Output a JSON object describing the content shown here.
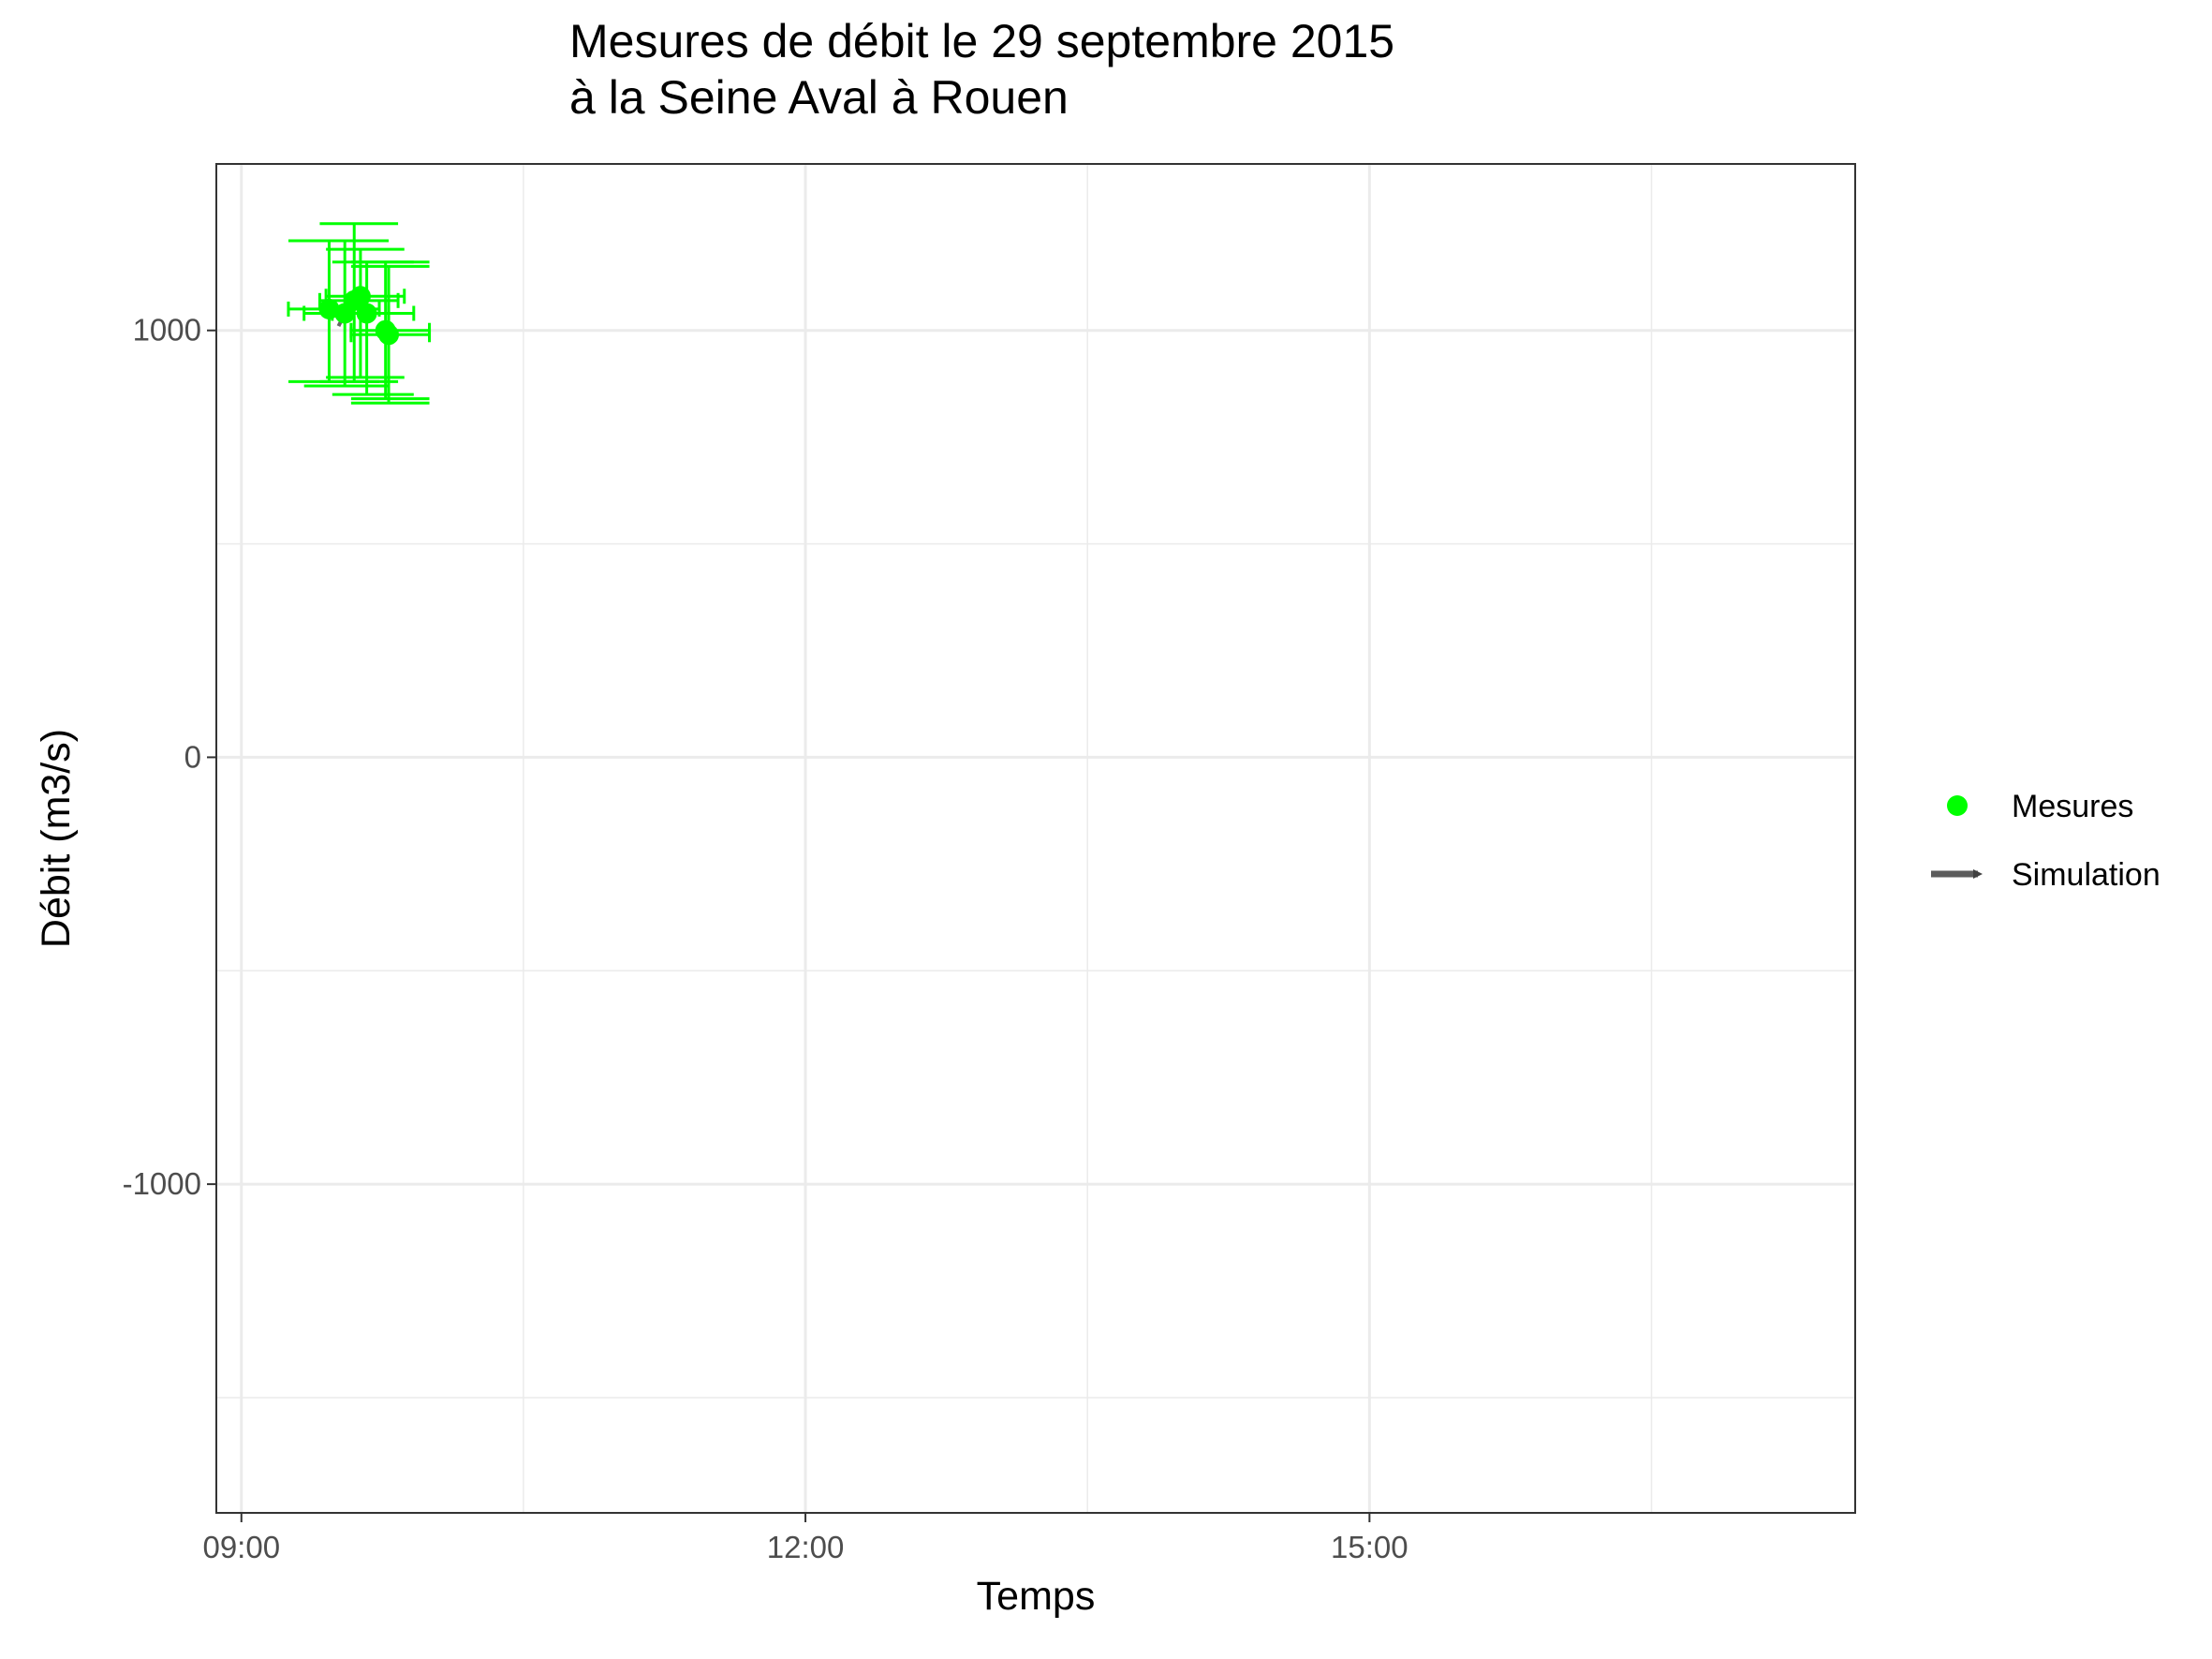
{
  "chart_data": {
    "type": "scatter",
    "title": "Mesures de débit le 29 septembre 2015",
    "subtitle": "à la Seine Aval à Rouen",
    "xlabel": "Temps",
    "ylabel": "Débit (m3/s)",
    "x_ticks": [
      "09:00",
      "12:00",
      "15:00"
    ],
    "y_ticks": [
      -1000,
      0,
      1000
    ],
    "xlim": [
      "08:52",
      "17:35"
    ],
    "ylim": [
      -1770,
      1390
    ],
    "grid": true,
    "legend_position": "right",
    "legend": [
      {
        "label": "Mesures",
        "symbol": "point",
        "color": "#00ff00"
      },
      {
        "label": "Simulation",
        "symbol": "arrow",
        "color": "#404040"
      }
    ],
    "series": [
      {
        "name": "Mesures",
        "color": "#00ff00",
        "points": [
          {
            "x": "09:28",
            "y": 1050,
            "x_err": [
              "09:15",
              "09:44"
            ],
            "y_err": [
              880,
              1210
            ]
          },
          {
            "x": "09:33",
            "y": 1040,
            "x_err": [
              "09:20",
              "09:47"
            ],
            "y_err": [
              870,
              1210
            ]
          },
          {
            "x": "09:36",
            "y": 1070,
            "x_err": [
              "09:25",
              "09:50"
            ],
            "y_err": [
              880,
              1250
            ]
          },
          {
            "x": "09:38",
            "y": 1080,
            "x_err": [
              "09:27",
              "09:52"
            ],
            "y_err": [
              890,
              1190
            ]
          },
          {
            "x": "09:40",
            "y": 1040,
            "x_err": [
              "09:29",
              "09:55"
            ],
            "y_err": [
              850,
              1160
            ]
          },
          {
            "x": "09:46",
            "y": 1000,
            "x_err": [
              "09:35",
              "10:00"
            ],
            "y_err": [
              840,
              1160
            ]
          },
          {
            "x": "09:47",
            "y": 990,
            "x_err": [
              "09:35",
              "10:00"
            ],
            "y_err": [
              830,
              1150
            ]
          }
        ]
      },
      {
        "name": "Simulation",
        "color": "#404040",
        "arrows": [
          {
            "from": {
              "x": "09:31",
              "y": 1010
            },
            "to": {
              "x": "09:33",
              "y": 1040
            }
          }
        ]
      }
    ]
  }
}
